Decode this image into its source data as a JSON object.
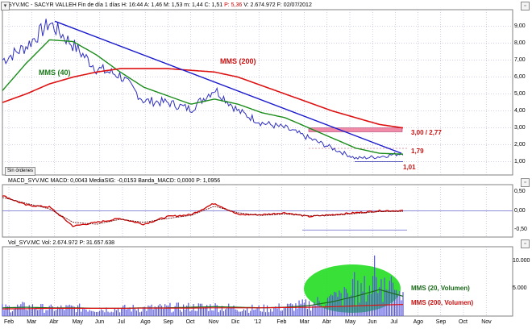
{
  "header_main": {
    "symbol": "SYV.MC - SACYR VALLEH",
    "info": "Fin de día  1 días  H: 16:44  A: 1,46  M: 1,53  m: 1,44  C: 1,51",
    "pct": "P: 5,36",
    "vol": "V: 2.674.972  F: 02/07/2012"
  },
  "header_macd": {
    "text": "MACD_SYV.MC  MACD: 0,0043  MediaSIG: -0,0153  Banda_MACD: 0,0000  P: 1,0956"
  },
  "header_vol": {
    "text": "Vol_SYV.MC  Vol: 2.674.972  P: 31.657.638"
  },
  "annotations": {
    "mms40": "MMS (40)",
    "mms200": "MMS (200)",
    "resistance": "3,00 / 2,77",
    "level_179": "1,79",
    "level_101": "1,01",
    "vol_mms20": "MMS (20, Volumen)",
    "vol_mms200": "MMS (200, Volumen)"
  },
  "button_sin_ordenes": "Sin órdenes",
  "axis": {
    "price_ticks": [
      "9,00",
      "8,00",
      "7,00",
      "6,00",
      "5,00",
      "4,00",
      "3,00",
      "2,00",
      "1,00"
    ],
    "macd_ticks": [
      "0,50",
      "0,00",
      "-0,50"
    ],
    "vol_ticks": [
      "10.000",
      "5.000"
    ],
    "months": [
      "Feb",
      "Mar",
      "Abr",
      "May",
      "Jun",
      "Jul",
      "Ago",
      "Sep",
      "Oct",
      "Nov",
      "Dic",
      "'12",
      "Feb",
      "Mar",
      "Abr",
      "May",
      "Jun",
      "Jul",
      "Ago",
      "Sep",
      "Oct",
      "Nov"
    ]
  },
  "colors": {
    "price": "#3030c0",
    "mms40": "#1a8c1a",
    "mms200": "#dd1111",
    "trendline": "#1a1acc",
    "zone": "#ee7799",
    "macd": "#cc0000",
    "volume_bars": "#5555dd",
    "highlight": "#22dd22"
  },
  "icons": {
    "top_right": "window-controls-icon",
    "left_top": "collapse-icon"
  },
  "chart_data": [
    {
      "type": "line",
      "title": "SYV.MC - SACYR VALLEH",
      "ylim": [
        0.5,
        9.8
      ],
      "x": [
        "Feb",
        "Mar",
        "Abr",
        "May",
        "Jun",
        "Jul",
        "Ago",
        "Sep",
        "Oct",
        "Nov",
        "Dic",
        "'12",
        "Feb",
        "Mar",
        "Abr",
        "May",
        "Jun",
        "Jul"
      ],
      "series": [
        {
          "name": "",
          "values": [
            7.0,
            7.8,
            9.2,
            7.9,
            6.5,
            6.1,
            4.6,
            4.5,
            4.1,
            5.3,
            4.0,
            3.3,
            3.0,
            2.4,
            1.8,
            1.2,
            1.3,
            1.51
          ]
        },
        {
          "name": "MMS (40)",
          "values": [
            5.2,
            6.8,
            8.2,
            8.1,
            7.3,
            6.3,
            5.4,
            4.9,
            4.4,
            4.7,
            4.4,
            3.9,
            3.6,
            3.0,
            2.4,
            1.8,
            1.5,
            1.45
          ]
        },
        {
          "name": "MMS (200)",
          "values": [
            4.5,
            5.0,
            5.6,
            6.0,
            6.3,
            6.5,
            6.5,
            6.5,
            6.4,
            6.3,
            6.0,
            5.5,
            5.0,
            4.5,
            4.0,
            3.6,
            3.2,
            3.0
          ]
        }
      ],
      "levels": [
        3.0,
        2.77,
        1.79,
        1.01
      ]
    },
    {
      "type": "line",
      "title": "MACD_SYV.MC",
      "ylim": [
        -0.6,
        0.6
      ],
      "x": [
        "Feb",
        "Mar",
        "Abr",
        "May",
        "Jun",
        "Jul",
        "Ago",
        "Sep",
        "Oct",
        "Nov",
        "Dic",
        "'12",
        "Feb",
        "Mar",
        "Abr",
        "May",
        "Jun",
        "Jul"
      ],
      "series": [
        {
          "name": "MACD",
          "values": [
            0.4,
            0.15,
            0.1,
            -0.4,
            -0.3,
            -0.2,
            -0.35,
            -0.15,
            -0.1,
            0.2,
            -0.1,
            -0.1,
            -0.05,
            -0.15,
            -0.1,
            -0.05,
            0.0,
            0.0043
          ]
        },
        {
          "name": "MediaSIG",
          "values": [
            0.35,
            0.2,
            0.05,
            -0.3,
            -0.35,
            -0.22,
            -0.3,
            -0.2,
            -0.12,
            0.12,
            -0.05,
            -0.12,
            -0.08,
            -0.13,
            -0.12,
            -0.07,
            -0.02,
            -0.0153
          ]
        }
      ]
    },
    {
      "type": "bar",
      "title": "Vol_SYV.MC",
      "ylim": [
        0,
        12000
      ],
      "x": [
        "Feb",
        "Mar",
        "Abr",
        "May",
        "Jun",
        "Jul",
        "Ago",
        "Sep",
        "Oct",
        "Nov",
        "Dic",
        "'12",
        "Feb",
        "Mar",
        "Abr",
        "May",
        "Jun",
        "Jul"
      ],
      "series": [
        {
          "name": "Vol",
          "values": [
            1500,
            1800,
            1400,
            1600,
            1300,
            1400,
            1500,
            1600,
            1700,
            1800,
            1500,
            1400,
            1700,
            2200,
            3200,
            4200,
            6500,
            2675
          ]
        },
        {
          "name": "MMS (20, Volumen)",
          "values": [
            1500,
            1600,
            1500,
            1500,
            1400,
            1400,
            1500,
            1500,
            1600,
            1700,
            1600,
            1500,
            1600,
            1900,
            2600,
            3600,
            4800,
            3600
          ]
        },
        {
          "name": "MMS (200, Volumen)",
          "values": [
            1300,
            1350,
            1400,
            1400,
            1400,
            1400,
            1450,
            1450,
            1450,
            1500,
            1500,
            1500,
            1550,
            1600,
            1700,
            1850,
            2000,
            2100
          ]
        }
      ]
    }
  ]
}
